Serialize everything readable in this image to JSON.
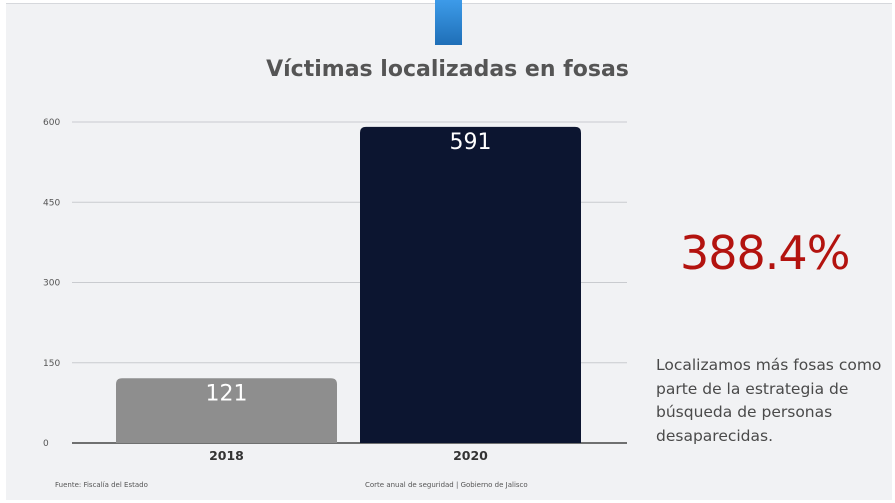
{
  "title": "Víctimas localizadas en fosas",
  "highlight": {
    "value": "388.4%",
    "color": "#b3130f"
  },
  "description": "Localizamos más fosas como parte de la estrategia de búsqueda de personas desaparecidas.",
  "footer": {
    "source": "Fuente: Fiscalía del Estado",
    "center": "Corte anual de seguridad | Gobierno de Jalisco"
  },
  "chart_data": {
    "type": "bar",
    "title": "Víctimas localizadas en fosas",
    "xlabel": "",
    "ylabel": "",
    "categories": [
      "2018",
      "2020"
    ],
    "values": [
      121,
      591
    ],
    "colors": [
      "#8e8e8e",
      "#0c1530"
    ],
    "ylim": [
      0,
      600
    ],
    "yticks": [
      0,
      150,
      300,
      450,
      600
    ],
    "grid": true
  }
}
